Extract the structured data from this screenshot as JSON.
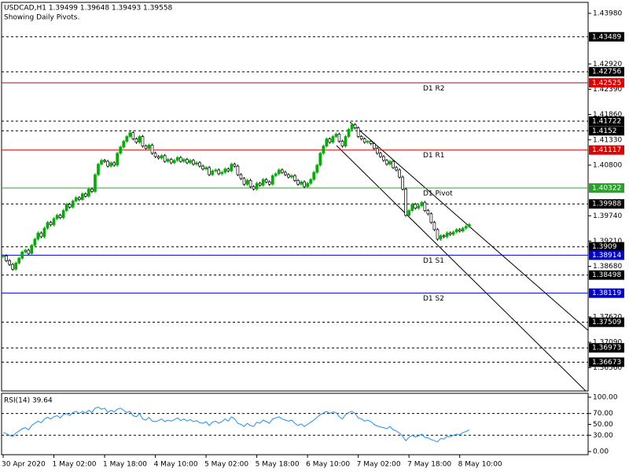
{
  "chart_data": [
    {
      "type": "candlestick",
      "title": "USDCAD,H1  1.39499 1.39648 1.39493 1.39558",
      "subtitle": "Showing Daily Pivots.",
      "up_color": "#00b000",
      "down_color": "#000000",
      "xlim": [
        -0.5,
        184.5
      ],
      "ylim": [
        1.3607,
        1.4421
      ],
      "yticks": [
        {
          "value": 1.4398,
          "label": "1.43980"
        },
        {
          "value": 1.4292,
          "label": "1.42920"
        },
        {
          "value": 1.4239,
          "label": "1.42390"
        },
        {
          "value": 1.4186,
          "label": "1.41860"
        },
        {
          "value": 1.4133,
          "label": "1.41330"
        },
        {
          "value": 1.408,
          "label": "1.40800"
        },
        {
          "value": 1.3974,
          "label": "1.39740"
        },
        {
          "value": 1.3921,
          "label": "1.39210"
        },
        {
          "value": 1.3868,
          "label": "1.38680"
        },
        {
          "value": 1.3762,
          "label": "1.37620"
        },
        {
          "value": 1.3709,
          "label": "1.37090"
        },
        {
          "value": 1.3656,
          "label": "1.36560"
        }
      ],
      "levels": [
        1.43489,
        1.42756,
        1.41722,
        1.4152,
        1.39988,
        1.3909,
        1.38498,
        1.37509,
        1.36973,
        1.36673
      ],
      "pivots": [
        {
          "name": "D1 R2",
          "value": 1.42525,
          "color": "#e00000"
        },
        {
          "name": "D1 R1",
          "value": 1.41117,
          "color": "#e00000"
        },
        {
          "name": "D1 Pivot",
          "value": 1.40322,
          "color": "#2ca02c"
        },
        {
          "name": "D1 S1",
          "value": 1.38914,
          "color": "#0000d0"
        },
        {
          "name": "D1 S2",
          "value": 1.38119,
          "color": "#0000d0"
        }
      ],
      "close": [
        1.389,
        1.388,
        1.3872,
        1.3862,
        1.3875,
        1.3885,
        1.3898,
        1.3902,
        1.3895,
        1.3912,
        1.3925,
        1.3938,
        1.393,
        1.3948,
        1.396,
        1.3955,
        1.3968,
        1.3975,
        1.397,
        1.3985,
        1.3998,
        1.3992,
        1.4005,
        1.4012,
        1.4008,
        1.402,
        1.4015,
        1.403,
        1.4025,
        1.406,
        1.4082,
        1.409,
        1.4088,
        1.4078,
        1.4085,
        1.408,
        1.4105,
        1.4118,
        1.413,
        1.414,
        1.4148,
        1.4135,
        1.4128,
        1.414,
        1.412,
        1.4115,
        1.4122,
        1.4105,
        1.4098,
        1.4095,
        1.41,
        1.4088,
        1.4092,
        1.4085,
        1.409,
        1.4096,
        1.4088,
        1.4092,
        1.4085,
        1.409,
        1.4082,
        1.4085,
        1.4078,
        1.4072,
        1.4075,
        1.406,
        1.4068,
        1.407,
        1.4062,
        1.4065,
        1.4072,
        1.4068,
        1.4082,
        1.4078,
        1.406,
        1.4052,
        1.404,
        1.4048,
        1.4035,
        1.403,
        1.4042,
        1.4038,
        1.405,
        1.4045,
        1.404,
        1.4058,
        1.4062,
        1.407,
        1.4065,
        1.406,
        1.4055,
        1.4058,
        1.4048,
        1.404,
        1.4045,
        1.4035,
        1.4042,
        1.405,
        1.4065,
        1.408,
        1.4105,
        1.412,
        1.4135,
        1.4128,
        1.414,
        1.4145,
        1.413,
        1.412,
        1.414,
        1.4155,
        1.4165,
        1.4158,
        1.414,
        1.4135,
        1.4128,
        1.413,
        1.4125,
        1.4115,
        1.4105,
        1.4098,
        1.409,
        1.4082,
        1.4088,
        1.4075,
        1.407,
        1.4055,
        1.403,
        1.3975,
        1.3985,
        1.3998,
        1.399,
        1.3995,
        1.4002,
        1.3985,
        1.3978,
        1.396,
        1.3945,
        1.3925,
        1.3932,
        1.393,
        1.3938,
        1.3935,
        1.394,
        1.3945,
        1.3942,
        1.3948,
        1.3952,
        1.39558
      ]
    },
    {
      "type": "line",
      "title": "RSI(14) 39.64",
      "color": "#1e90ff",
      "xlim": [
        -0.5,
        184.5
      ],
      "ylim": [
        -5.8,
        107.2
      ],
      "yticks": [
        {
          "value": 100,
          "label": "100.00"
        },
        {
          "value": 70,
          "label": "70.00"
        },
        {
          "value": 50,
          "label": "50.00"
        },
        {
          "value": 30,
          "label": "30.00"
        },
        {
          "value": 0,
          "label": "0.00"
        }
      ],
      "levels": [
        70,
        30
      ],
      "xticks": [
        {
          "value": 0,
          "label": "30 Apr 2020"
        },
        {
          "value": 16,
          "label": "1 May 02:00"
        },
        {
          "value": 32,
          "label": "1 May 18:00"
        },
        {
          "value": 48,
          "label": "4 May 10:00"
        },
        {
          "value": 64,
          "label": "5 May 02:00"
        },
        {
          "value": 80,
          "label": "5 May 18:00"
        },
        {
          "value": 96,
          "label": "6 May 10:00"
        },
        {
          "value": 112,
          "label": "7 May 02:00"
        },
        {
          "value": 128,
          "label": "7 May 18:00"
        },
        {
          "value": 144,
          "label": "8 May 10:00"
        }
      ],
      "values": [
        35,
        33,
        30,
        28,
        34,
        38,
        42,
        44,
        40,
        48,
        52,
        56,
        53,
        60,
        63,
        60,
        64,
        66,
        62,
        68,
        70,
        66,
        72,
        74,
        70,
        74,
        71,
        76,
        72,
        80,
        82,
        78,
        80,
        72,
        76,
        73,
        78,
        80,
        76,
        72,
        74,
        66,
        64,
        70,
        60,
        58,
        63,
        56,
        55,
        57,
        60,
        55,
        58,
        56,
        59,
        62,
        57,
        60,
        56,
        59,
        55,
        57,
        53,
        52,
        55,
        48,
        54,
        56,
        52,
        55,
        60,
        56,
        64,
        60,
        52,
        50,
        46,
        52,
        48,
        46,
        54,
        52,
        58,
        55,
        52,
        60,
        62,
        64,
        60,
        58,
        56,
        58,
        52,
        48,
        51,
        46,
        50,
        54,
        58,
        63,
        68,
        71,
        74,
        70,
        73,
        72,
        64,
        60,
        68,
        72,
        74,
        70,
        62,
        60,
        56,
        58,
        55,
        50,
        47,
        45,
        44,
        42,
        46,
        40,
        38,
        34,
        28,
        20,
        26,
        30,
        27,
        29,
        32,
        26,
        25,
        22,
        20,
        18,
        24,
        23,
        28,
        27,
        30,
        32,
        31,
        35,
        37,
        39.64
      ]
    }
  ]
}
